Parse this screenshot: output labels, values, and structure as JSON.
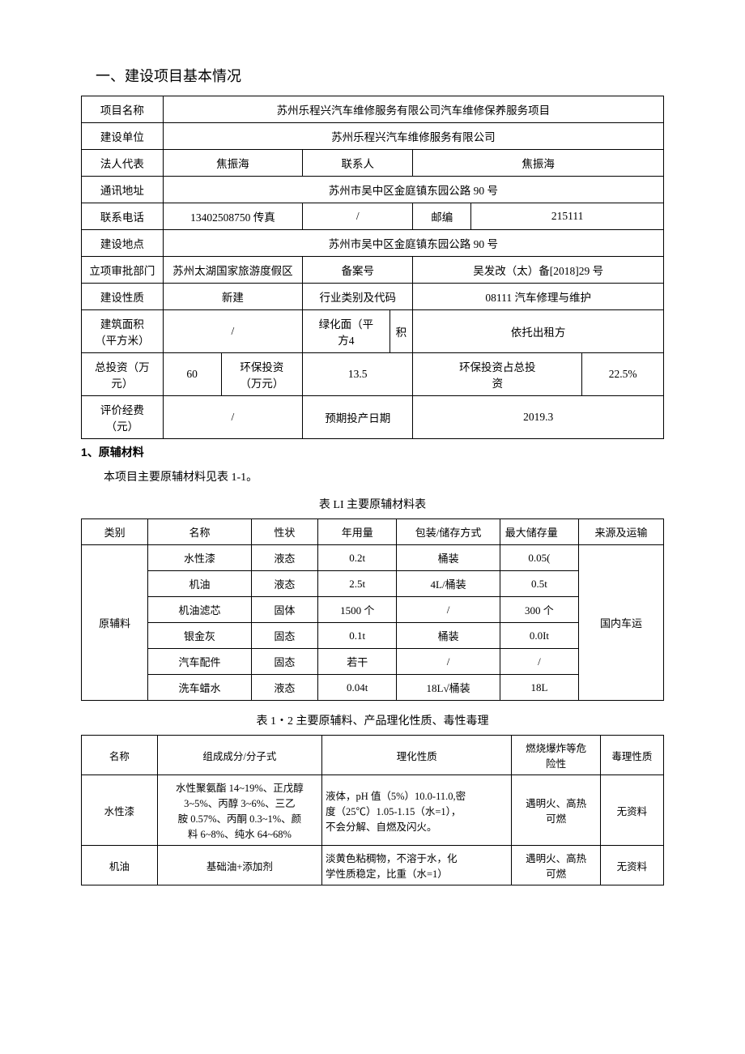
{
  "section_title": "一、建设项目基本情况",
  "basic": {
    "labels": {
      "project_name": "项目名称",
      "construction_unit": "建设单位",
      "legal_rep": "法人代表",
      "contact": "联系人",
      "address": "通讯地址",
      "phone": "联系电话",
      "postcode": "邮编",
      "location": "建设地点",
      "approval_dept": "立项审批部门",
      "filing_no": "备案号",
      "nature": "建设性质",
      "industry": "行业类别及代码",
      "building_area": "建筑面积\n（平方米）",
      "green_area": "绿化面（平\n方4",
      "green_area_suffix": "积",
      "total_invest": "总投资（万\n元）",
      "env_invest": "环保投资\n（万元）",
      "env_invest_value": "13.5",
      "env_ratio": "环保投资占总投\n资",
      "eval_fee": "评价经费\n（元）",
      "expected_date": "预期投产日期"
    },
    "values": {
      "project_name": "苏州乐程兴汽车维修服务有限公司汽车维修保养服务项目",
      "construction_unit": "苏州乐程兴汽车维修服务有限公司",
      "legal_rep": "焦振海",
      "contact": "焦振海",
      "address": "苏州市吴中区金庭镇东园公路 90 号",
      "phone": "13402508750 传真",
      "fax": "/",
      "postcode": "215111",
      "location": "苏州市吴中区金庭镇东园公路 90 号",
      "approval_dept": "苏州太湖国家旅游度假区",
      "filing_no": "吴发改（太）备[2018]29 号",
      "nature": "新建",
      "industry": "08111 汽车修理与维护",
      "building_area": "/",
      "green_area": "依托出租方",
      "total_invest": "60",
      "env_invest": "13.5",
      "env_ratio": "22.5%",
      "eval_fee": "/",
      "expected_date": "2019.3"
    }
  },
  "materials_heading_num": "1",
  "materials_heading": "、原辅材料",
  "materials_intro": "本项目主要原辅材料见表 1-1。",
  "table1_caption": "表 LI 主要原辅材料表",
  "table1": {
    "headers": [
      "类别",
      "名称",
      "性状",
      "年用量",
      "包装/储存方式",
      "最大储存量",
      "来源及运输"
    ],
    "category": "原辅料",
    "transport": "国内车运",
    "rows": [
      [
        "水性漆",
        "液态",
        "0.2t",
        "桶装",
        "0.05("
      ],
      [
        "机油",
        "液态",
        "2.5t",
        "4L/桶装",
        "0.5t"
      ],
      [
        "机油滤芯",
        "固体",
        "1500 个",
        "/",
        "300 个"
      ],
      [
        "银金灰",
        "固态",
        "0.1t",
        "桶装",
        "0.0It"
      ],
      [
        "汽车配件",
        "固态",
        "若干",
        "/",
        "/"
      ],
      [
        "洗车蜡水",
        "液态",
        "0.04t",
        "18L√桶装",
        "18L"
      ]
    ]
  },
  "table2_caption": "表 1・2 主要原辅料、产品理化性质、毒性毒理",
  "table2": {
    "headers": [
      "名称",
      "组成成分/分子式",
      "理化性质",
      "燃烧爆炸等危\n险性",
      "毒理性质"
    ],
    "rows": [
      {
        "name": "水性漆",
        "composition": "水性聚氨酯 14~19%、正戊醇\n3~5%、丙醇 3~6%、三乙\n胺 0.57%、丙酮 0.3~1%、颜\n料 6~8%、纯水 64~68%",
        "properties": "液体，pH 值（5%）10.0-11.0,密\n度（25℃）1.05-1.15（水=1），\n不会分解、自燃及闪火。",
        "hazard": "遇明火、高热\n可燃",
        "toxicity": "无资料"
      },
      {
        "name": "机油",
        "composition": "基础油+添加剂",
        "properties": "淡黄色粘稠物，不溶于水，化\n学性质稳定，比重（水=1）",
        "hazard": "遇明火、高热\n可燃",
        "toxicity": "无资料"
      }
    ]
  }
}
